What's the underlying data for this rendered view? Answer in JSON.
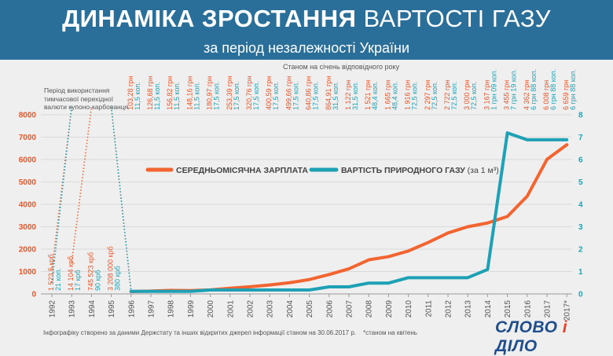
{
  "header": {
    "title_bold": "ДИНАМІКА ЗРОСТАННЯ",
    "title_rest": "ВАРТОСТІ ГАЗУ",
    "subtitle": "за період незалежності України"
  },
  "notes": {
    "top": "Станом на січень відповідного року",
    "left": "Період використання тимчасової перехідної валюти купоно-карбованця",
    "footer": "Інфографіку створено за даними Держстату та інших відкритих джерел інформації станом на 30.06.2017 р.",
    "footnote": "*станом на квітень"
  },
  "logo": {
    "part1": "СЛОВО",
    "part2": "і",
    "part3": "ДІЛО"
  },
  "colors": {
    "salary": "#f26430",
    "gas": "#1ea1b5",
    "header": "#2a6f9a"
  },
  "chart_data": {
    "type": "line",
    "categories": [
      "1992",
      "1993",
      "1994",
      "1995",
      "1996",
      "1997",
      "1998",
      "1999",
      "2000",
      "2001",
      "2002",
      "2003",
      "2004",
      "2005",
      "2006",
      "2007",
      "2008",
      "2009",
      "2010",
      "2011",
      "2012",
      "2013",
      "2014",
      "2015",
      "2016",
      "2017",
      "2017*"
    ],
    "ylim_left": [
      0,
      8000
    ],
    "yticks_left": [
      "0",
      "1000",
      "2000",
      "3000",
      "4000",
      "5000",
      "6000",
      "7000",
      "8000"
    ],
    "ylim_right": [
      0,
      8
    ],
    "yticks_right": [
      "0",
      "1",
      "2",
      "3",
      "4",
      "5",
      "6",
      "7",
      "8"
    ],
    "series": [
      {
        "name": "СЕРЕДНЬОМІСЯЧНА ЗАРПЛАТА",
        "axis": "left",
        "values": [
          null,
          null,
          null,
          null,
          103.28,
          126.68,
          156.82,
          148.16,
          180.97,
          253.39,
          320.76,
          400.59,
          499.66,
          640.86,
          864.91,
          1122,
          1521,
          1665,
          1916,
          2297,
          2722,
          3000,
          3167,
          3455,
          4362,
          6008,
          6659
        ]
      },
      {
        "name": "ВАРТІСТЬ ПРИРОДНОГО ГАЗУ",
        "axis": "right",
        "values": [
          null,
          null,
          null,
          null,
          0.115,
          0.115,
          0.115,
          0.115,
          0.175,
          0.175,
          0.175,
          0.175,
          0.175,
          0.175,
          0.315,
          0.315,
          0.484,
          0.484,
          0.725,
          0.725,
          0.725,
          0.725,
          1.09,
          7.19,
          6.88,
          6.88,
          6.88
        ]
      }
    ],
    "salary_labels": [
      "103,28 грн",
      "126,68 грн",
      "156,82 грн",
      "148,16 грн",
      "180,97 грн",
      "253,39 грн",
      "320,76 грн",
      "400,59 грн",
      "499,66 грн",
      "640,86 грн",
      "864,91 грн",
      "1 122 грн",
      "1 521 грн",
      "1 665 грн",
      "1 916 грн",
      "2 297 грн",
      "2 722 грн",
      "3 000 грн",
      "3 167 грн",
      "3 455 грн",
      "4 362 грн",
      "6 008 грн",
      "6 659 грн"
    ],
    "gas_labels": [
      "11,5 коп.",
      "11,5 коп.",
      "11,5 коп.",
      "11,5 коп.",
      "17,5 коп.",
      "17,5 коп.",
      "17,5 коп.",
      "17,5 коп.",
      "17,5 коп.",
      "17,5 коп.",
      "31,5 коп.",
      "31,5 коп.",
      "48,4 коп.",
      "48,4 коп.",
      "72,5 коп.",
      "72,5 коп.",
      "72,5 коп.",
      "72,5 коп.",
      "1 грн 09 коп.",
      "7 грн 19 коп.",
      "6 грн 88 коп.",
      "6 грн 88 коп.",
      "6 грн 88 коп."
    ],
    "early_salary_labels": [
      "1 523,5 крб",
      "14 104 крб",
      "745 523 крб",
      "3 208 000 крб"
    ],
    "early_gas_labels": [
      "21 коп.",
      "17 крб",
      "90 крб",
      "380 крб"
    ],
    "legend_unit": "(за 1 м³)"
  }
}
